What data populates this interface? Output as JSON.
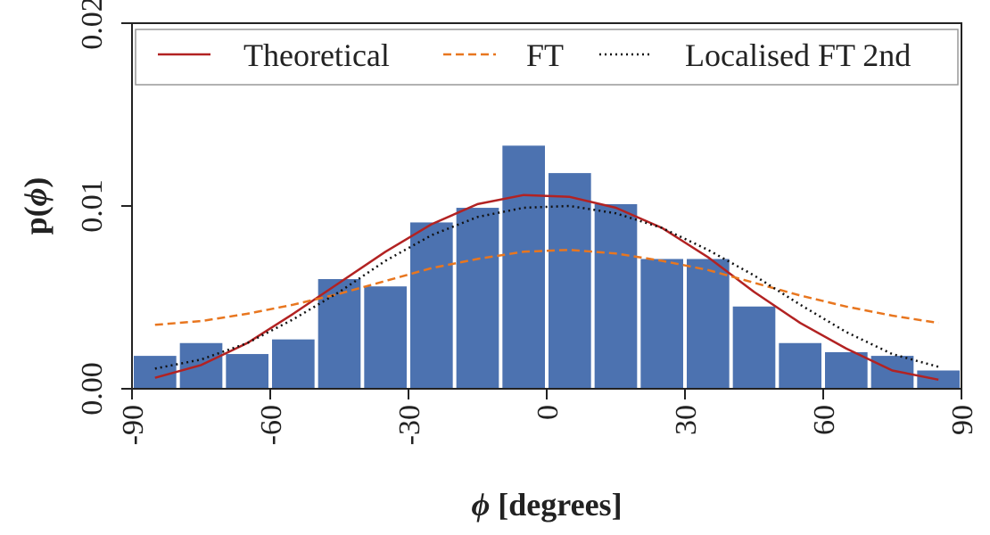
{
  "chart_data": {
    "type": "bar",
    "xlabel_symbol": "ϕ",
    "xlabel_text": " [degrees]",
    "ylabel_prefix": "p(",
    "ylabel_symbol": "ϕ",
    "ylabel_suffix": ")",
    "xlim": [
      -90,
      90
    ],
    "ylim": [
      0,
      0.02
    ],
    "x_ticks": [
      -90,
      -60,
      -30,
      0,
      30,
      60,
      90
    ],
    "x_tick_labels": [
      "-90",
      "-60",
      "-30",
      "0",
      "30",
      "60",
      "90"
    ],
    "y_ticks": [
      0,
      0.01,
      0.02
    ],
    "y_tick_labels": [
      "0.00",
      "0.01",
      "0.02"
    ],
    "bin_width": 10,
    "bins": [
      {
        "center": -85,
        "value": 0.0018
      },
      {
        "center": -75,
        "value": 0.0025
      },
      {
        "center": -65,
        "value": 0.0019
      },
      {
        "center": -55,
        "value": 0.0027
      },
      {
        "center": -45,
        "value": 0.006
      },
      {
        "center": -35,
        "value": 0.0056
      },
      {
        "center": -25,
        "value": 0.0091
      },
      {
        "center": -15,
        "value": 0.0099
      },
      {
        "center": -5,
        "value": 0.0133
      },
      {
        "center": 5,
        "value": 0.0118
      },
      {
        "center": 15,
        "value": 0.0101
      },
      {
        "center": 25,
        "value": 0.0071
      },
      {
        "center": 35,
        "value": 0.0071
      },
      {
        "center": 45,
        "value": 0.0045
      },
      {
        "center": 55,
        "value": 0.0025
      },
      {
        "center": 65,
        "value": 0.002
      },
      {
        "center": 75,
        "value": 0.0018
      },
      {
        "center": 85,
        "value": 0.001
      }
    ],
    "series": [
      {
        "name": "Theoretical",
        "style": "solid",
        "color": "#b22222",
        "x": [
          -85,
          -75,
          -65,
          -55,
          -45,
          -35,
          -25,
          -15,
          -5,
          5,
          15,
          25,
          35,
          45,
          55,
          65,
          75,
          85
        ],
        "y": [
          0.0006,
          0.0013,
          0.0025,
          0.0041,
          0.0058,
          0.0075,
          0.009,
          0.0101,
          0.0106,
          0.0105,
          0.0099,
          0.0088,
          0.0072,
          0.0053,
          0.0036,
          0.0022,
          0.001,
          0.0005
        ]
      },
      {
        "name": "FT",
        "style": "dashed",
        "color": "#e8761f",
        "x": [
          -85,
          -75,
          -65,
          -55,
          -45,
          -35,
          -25,
          -15,
          -5,
          5,
          15,
          25,
          35,
          45,
          55,
          65,
          75,
          85
        ],
        "y": [
          0.0035,
          0.0037,
          0.0041,
          0.0046,
          0.0052,
          0.0059,
          0.0066,
          0.0071,
          0.0075,
          0.0076,
          0.0074,
          0.007,
          0.0065,
          0.0058,
          0.0051,
          0.0045,
          0.004,
          0.0036
        ]
      },
      {
        "name": "Localised FT 2nd",
        "style": "dotted",
        "color": "#111111",
        "x": [
          -85,
          -75,
          -65,
          -55,
          -45,
          -35,
          -25,
          -15,
          -5,
          5,
          15,
          25,
          35,
          45,
          55,
          65,
          75,
          85
        ],
        "y": [
          0.0011,
          0.0016,
          0.0025,
          0.0038,
          0.0053,
          0.007,
          0.0084,
          0.0094,
          0.0099,
          0.01,
          0.0096,
          0.0088,
          0.0076,
          0.0062,
          0.0046,
          0.0031,
          0.0019,
          0.0012
        ]
      }
    ],
    "legend_position": "top",
    "grid": false,
    "bar_color": "#4c72b0"
  }
}
